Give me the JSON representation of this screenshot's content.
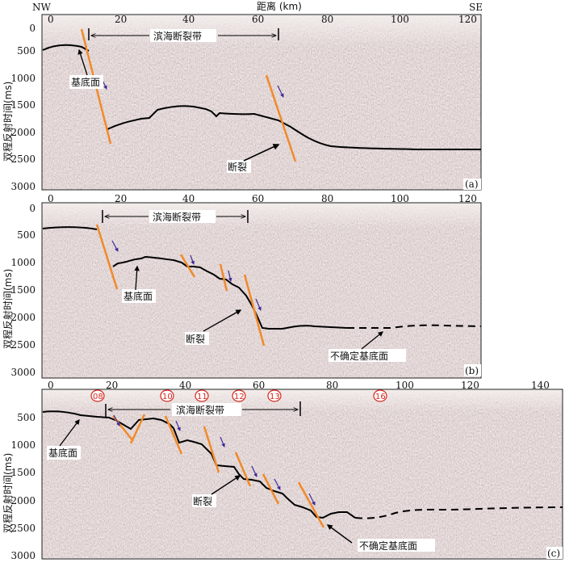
{
  "header": {
    "left": "NW",
    "center": "距离 (km)",
    "right": "SE"
  },
  "panels": [
    {
      "id": "a",
      "corner_label": "(a)",
      "ylabel": "双程反射时间(ms)",
      "xticks": [
        "0",
        "20",
        "40",
        "60",
        "80",
        "100",
        "120"
      ],
      "yticks": [
        "0",
        "500",
        "1000",
        "1500",
        "2000",
        "2500",
        "3000"
      ],
      "zone_label": "滨海断裂带",
      "labels": [
        "基底面",
        "断裂"
      ]
    },
    {
      "id": "b",
      "corner_label": "(b)",
      "ylabel": "双程反射时间(ms)",
      "xticks": [
        "0",
        "20",
        "40",
        "60",
        "80",
        "100",
        "120"
      ],
      "yticks": [
        "0",
        "500",
        "1000",
        "1500",
        "2000",
        "2500",
        "3000"
      ],
      "zone_label": "滨海断裂带",
      "labels": [
        "基底面",
        "断裂",
        "不确定基底面"
      ]
    },
    {
      "id": "c",
      "corner_label": "(c)",
      "ylabel": "双程反射时间(ms)",
      "xticks": [
        "0",
        "20",
        "40",
        "60",
        "80",
        "100",
        "120",
        "140"
      ],
      "yticks": [
        "500",
        "1000",
        "1500",
        "2000",
        "2500",
        "3000"
      ],
      "zone_label": "滨海断裂带",
      "labels": [
        "基底面",
        "断裂",
        "不确定基底面"
      ],
      "stations": [
        "08",
        "10",
        "11",
        "12",
        "13",
        "16"
      ]
    }
  ],
  "colors": {
    "fault": "#f08a2a",
    "horizon": "#000000",
    "arrow": "#3b2a9a",
    "station": "#d4261c"
  }
}
